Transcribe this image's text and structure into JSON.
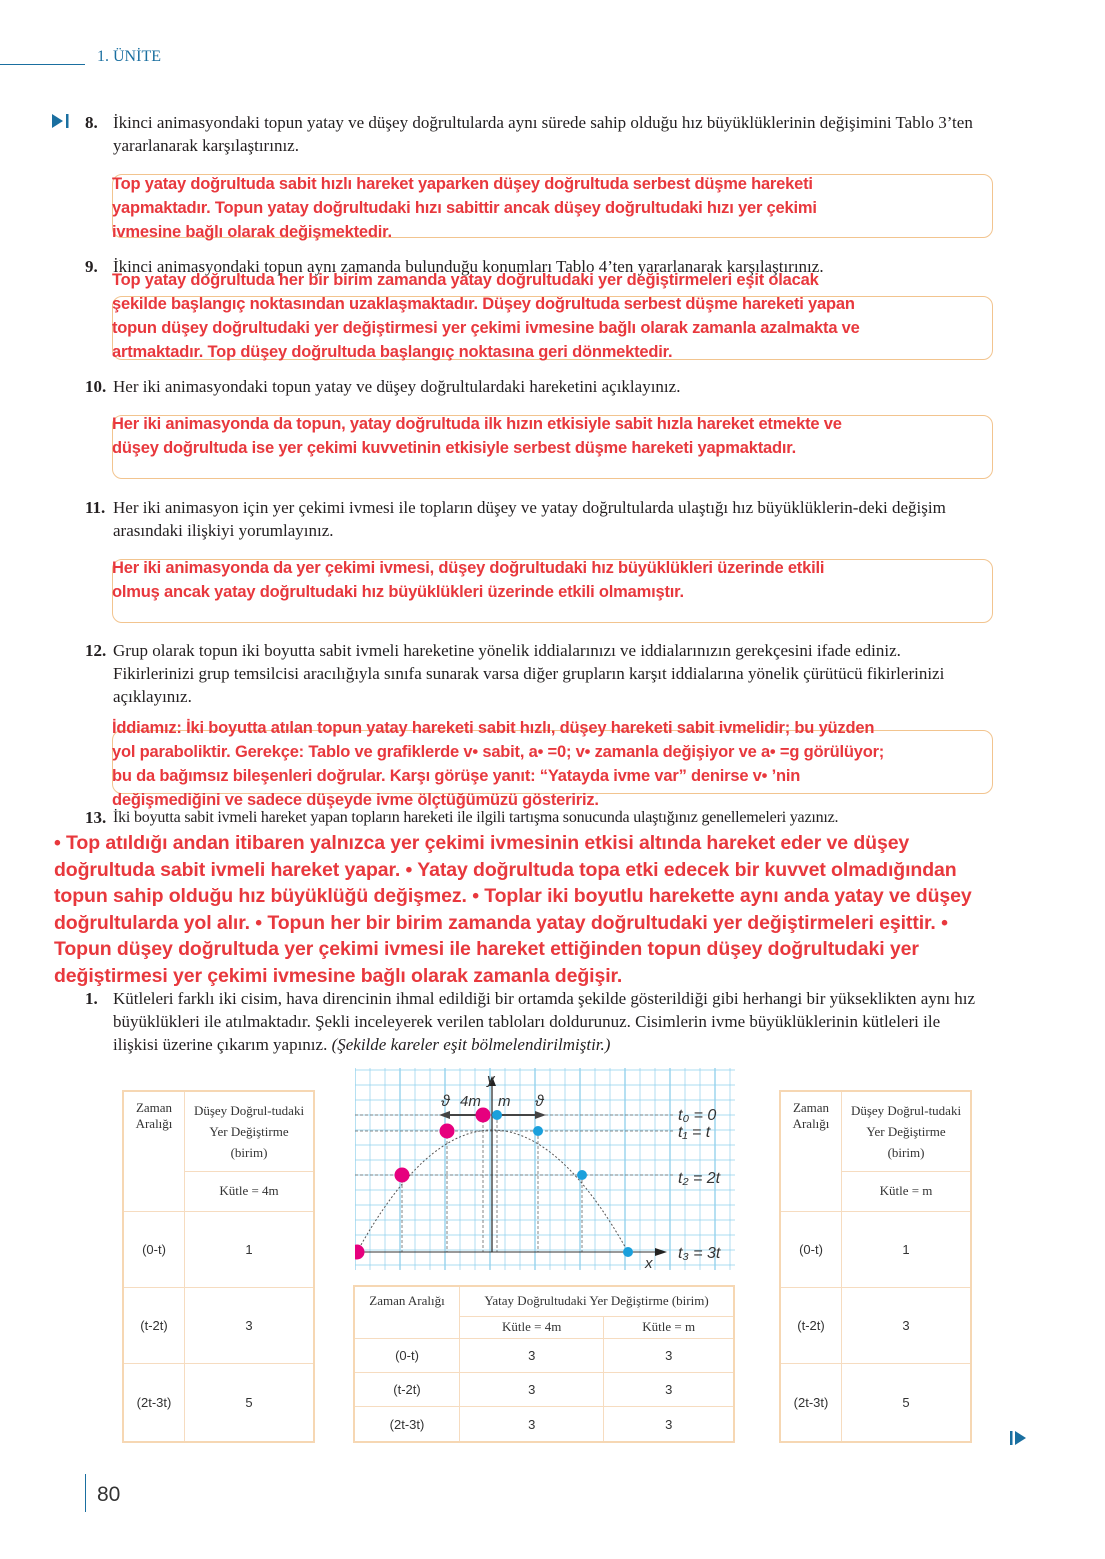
{
  "header": {
    "unit": "1. ÜNİTE",
    "accent": "#1a6fa0"
  },
  "questions": {
    "q8": {
      "num": "8.",
      "text": "İkinci animasyondaki topun yatay ve düşey doğrultularda aynı sürede sahip olduğu hız büyüklüklerinin değişimini Tablo 3’ten yararlanarak karşılaştırınız.",
      "answer": [
        "Top yatay doğrultuda sabit hızlı hareket yaparken düşey doğrultuda serbest düşme hareketi",
        "yapmaktadır. Topun yatay doğrultudaki hızı sabittir ancak düşey doğrultudaki hızı yer çekimi",
        "ivmesine bağlı olarak değişmektedir."
      ]
    },
    "q9": {
      "num": "9.",
      "text": "İkinci animasyondaki topun aynı zamanda bulunduğu konumları Tablo 4’ten yararlanarak karşılaştırınız.",
      "answer": [
        "Top yatay doğrultuda her bir birim zamanda yatay doğrultudaki yer değiştirmeleri eşit olacak",
        "şekilde başlangıç noktasından uzaklaşmaktadır. Düşey doğrultuda serbest düşme hareketi yapan",
        "topun düşey doğrultudaki yer değiştirmesi yer çekimi ivmesine bağlı olarak zamanla azalmakta ve",
        "artmaktadır. Top düşey doğrultuda başlangıç noktasına geri dönmektedir."
      ]
    },
    "q10": {
      "num": "10.",
      "text": "Her iki animasyondaki topun yatay ve düşey doğrultulardaki hareketini açıklayınız.",
      "answer": [
        "Her iki animasyonda da topun, yatay doğrultuda ilk hızın etkisiyle sabit hızla hareket etmekte ve",
        "düşey doğrultuda ise yer çekimi kuvvetinin etkisiyle serbest düşme hareketi yapmaktadır."
      ]
    },
    "q11": {
      "num": "11.",
      "text": "Her iki animasyon için yer çekimi ivmesi ile topların düşey ve yatay doğrultularda ulaştığı hız büyüklüklerin-deki değişim arasındaki ilişkiyi yorumlayınız.",
      "answer": [
        "Her iki animasyonda da yer çekimi ivmesi, düşey doğrultudaki hız büyüklükleri üzerinde etkili",
        "olmuş ancak yatay doğrultudaki hız büyüklükleri üzerinde etkili olmamıştır."
      ]
    },
    "q12": {
      "num": "12.",
      "text": "Grup olarak topun iki boyutta sabit ivmeli hareketine yönelik iddialarınızı ve iddialarınızın gerekçesini ifade ediniz. Fikirlerinizi grup temsilcisi aracılığıyla sınıfa sunarak varsa diğer grupların karşıt iddialarına yönelik çürütücü fikirlerinizi açıklayınız.",
      "answer": [
        " İddiamız: İki boyutta atılan topun yatay hareketi sabit hızlı, düşey hareketi sabit ivmelidir; bu yüzden",
        "yol paraboliktir. Gerekçe: Tablo ve grafiklerde v• sabit, a• =0; v• zamanla değişiyor ve a• =g görülüyor;",
        "bu da bağımsız bileşenleri doğrular. Karşı görüşe yanıt: “Yatayda ivme var” denirse v• ’nin",
        "değişmediğini ve sadece düşeyde ivme ölçtüğümüzü gösteririz."
      ]
    },
    "q13": {
      "num": "13.",
      "text": "İki boyutta sabit ivmeli hareket yapan topların hareketi ile ilgili tartışma sonucunda ulaştığınız genellemeleri yazınız.",
      "answer": [
        "• Top atıldığı andan itibaren yalnızca yer çekimi ivmesinin etkisi altında hareket eder ve düşey",
        "doğrultuda sabit ivmeli hareket yapar. • Yatay doğrultuda topa etki edecek bir kuvvet olmadığından",
        "topun sahip olduğu hız büyüklüğü değişmez. • Toplar iki boyutlu harekette aynı anda yatay ve düşey",
        "doğrultularda yol alır. • Topun her bir birim zamanda yatay doğrultudaki yer değiştirmeleri eşittir. •",
        "Topun düşey doğrultuda yer çekimi ivmesi ile hareket ettiğinden topun düşey doğrultudaki yer",
        "değiştirmesi yer çekimi ivmesine bağlı olarak zamanla değişir."
      ]
    },
    "q1": {
      "num": "1.",
      "text": "Kütleleri farklı iki cisim, hava direncinin ihmal edildiği bir ortamda şekilde gösterildiği gibi herhangi bir yükseklikten aynı hız büyüklükleri ile atılmaktadır. Şekli inceleyerek verilen tabloları doldurunuz. Cisimlerin ivme büyüklüklerinin kütleleri ile ilişkisi üzerine çıkarım yapınız.",
      "note": "(Şekilde kareler eşit bölmelendirilmiştir.)"
    }
  },
  "left_table": {
    "col1": "Zaman Aralığı",
    "col2": "Düşey Doğrul-tudaki Yer Değiştirme (birim)",
    "sub": "Kütle = 4m",
    "rows": [
      {
        "t": "(0-t)",
        "v": "1"
      },
      {
        "t": "(t-2t)",
        "v": "3"
      },
      {
        "t": "(2t-3t)",
        "v": "5"
      }
    ]
  },
  "right_table": {
    "col1": "Zaman Aralığı",
    "col2": "Düşey Doğrul-tudaki Yer Değiştirme (birim)",
    "sub": "Kütle = m",
    "rows": [
      {
        "t": "(0-t)",
        "v": "1"
      },
      {
        "t": "(t-2t)",
        "v": "3"
      },
      {
        "t": "(2t-3t)",
        "v": "5"
      }
    ]
  },
  "middle_table": {
    "col1": "Zaman Aralığı",
    "col2": "Yatay Doğrultudaki Yer Değiştirme (birim)",
    "sub1": "Kütle = 4m",
    "sub2": "Kütle = m",
    "rows": [
      {
        "t": "(0-t)",
        "a": "3",
        "b": "3"
      },
      {
        "t": "(t-2t)",
        "a": "3",
        "b": "3"
      },
      {
        "t": "(2t-3t)",
        "a": "3",
        "b": "3"
      }
    ]
  },
  "figure": {
    "y_label": "y",
    "x_label": "x",
    "v_left": "ϑ",
    "v_right": "ϑ",
    "mass_left": "4m",
    "mass_right": "m",
    "t0": "t₀ = 0",
    "t1": "t₁ = t",
    "t2": "t₂ = 2t",
    "t3": "t₃ = 3t",
    "colors": {
      "heavy": "#e6007e",
      "light": "#1aa0dc",
      "grid": "#8fd0ec"
    }
  },
  "footer": {
    "page": "80"
  },
  "colors": {
    "answer": "#e8383d",
    "box": "#f2c48f"
  }
}
